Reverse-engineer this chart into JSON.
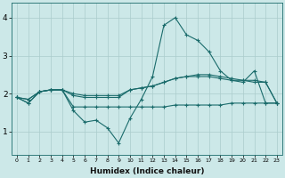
{
  "xlabel": "Humidex (Indice chaleur)",
  "bg_color": "#cce8e8",
  "grid_color": "#aacccc",
  "line_color": "#1a6b6b",
  "xlim": [
    -0.5,
    23.5
  ],
  "ylim": [
    0.4,
    4.4
  ],
  "yticks": [
    1,
    2,
    3,
    4
  ],
  "xticks": [
    0,
    1,
    2,
    3,
    4,
    5,
    6,
    7,
    8,
    9,
    10,
    11,
    12,
    13,
    14,
    15,
    16,
    17,
    18,
    19,
    20,
    21,
    22,
    23
  ],
  "line1_x": [
    0,
    1,
    2,
    3,
    4,
    5,
    6,
    7,
    8,
    9,
    10,
    11,
    12,
    13,
    14,
    15,
    16,
    17,
    18,
    19,
    20,
    21,
    22,
    23
  ],
  "line1_y": [
    1.9,
    1.75,
    2.05,
    2.1,
    2.1,
    1.65,
    1.65,
    1.65,
    1.65,
    1.65,
    1.65,
    1.65,
    1.65,
    1.65,
    1.7,
    1.7,
    1.7,
    1.7,
    1.7,
    1.75,
    1.75,
    1.75,
    1.75,
    1.75
  ],
  "line2_x": [
    0,
    1,
    2,
    3,
    4,
    5,
    6,
    7,
    8,
    9,
    10,
    11,
    12,
    13,
    14,
    15,
    16,
    17,
    18,
    19,
    20,
    21,
    22,
    23
  ],
  "line2_y": [
    1.9,
    1.75,
    2.05,
    2.1,
    2.1,
    1.55,
    1.25,
    1.3,
    1.1,
    0.7,
    1.35,
    1.85,
    2.45,
    3.8,
    4.0,
    3.55,
    3.4,
    3.1,
    2.6,
    2.35,
    2.3,
    2.6,
    1.75,
    1.75
  ],
  "line3_x": [
    0,
    1,
    2,
    3,
    4,
    5,
    6,
    7,
    8,
    9,
    10,
    11,
    12,
    13,
    14,
    15,
    16,
    17,
    18,
    19,
    20,
    21,
    22,
    23
  ],
  "line3_y": [
    1.9,
    1.85,
    2.05,
    2.1,
    2.1,
    1.95,
    1.9,
    1.9,
    1.9,
    1.9,
    2.1,
    2.15,
    2.2,
    2.3,
    2.4,
    2.45,
    2.45,
    2.45,
    2.4,
    2.35,
    2.35,
    2.3,
    2.3,
    1.75
  ],
  "line4_x": [
    0,
    1,
    2,
    3,
    4,
    5,
    6,
    7,
    8,
    9,
    10,
    11,
    12,
    13,
    14,
    15,
    16,
    17,
    18,
    19,
    20,
    21,
    22,
    23
  ],
  "line4_y": [
    1.9,
    1.85,
    2.05,
    2.1,
    2.1,
    2.0,
    1.95,
    1.95,
    1.95,
    1.95,
    2.1,
    2.15,
    2.2,
    2.3,
    2.4,
    2.45,
    2.5,
    2.5,
    2.45,
    2.4,
    2.35,
    2.35,
    2.3,
    1.75
  ]
}
